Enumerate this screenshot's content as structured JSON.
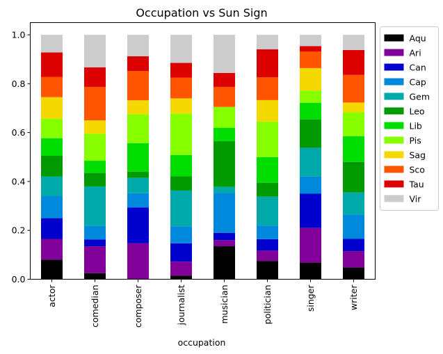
{
  "chart_data": {
    "type": "bar",
    "stacked": true,
    "title": "Occupation vs Sun Sign",
    "xlabel": "occupation",
    "ylabel": "",
    "ylim": [
      0,
      1.05
    ],
    "yticks": [
      "0.0",
      "0.2",
      "0.4",
      "0.6",
      "0.8",
      "1.0"
    ],
    "legend_position": "outside-right",
    "grid": false,
    "categories": [
      "actor",
      "comedian",
      "composer",
      "journalist",
      "musician",
      "politician",
      "singer",
      "writer"
    ],
    "series": [
      {
        "name": "Aqu",
        "color": "#000000",
        "values": [
          0.08,
          0.025,
          0.0,
          0.015,
          0.135,
          0.075,
          0.068,
          0.048
        ]
      },
      {
        "name": "Ari",
        "color": "#800099",
        "values": [
          0.085,
          0.11,
          0.147,
          0.057,
          0.025,
          0.042,
          0.142,
          0.067
        ]
      },
      {
        "name": "Can",
        "color": "#0000cc",
        "values": [
          0.085,
          0.028,
          0.147,
          0.075,
          0.03,
          0.047,
          0.14,
          0.05
        ]
      },
      {
        "name": "Cap",
        "color": "#0088dd",
        "values": [
          0.09,
          0.055,
          0.058,
          0.07,
          0.163,
          0.056,
          0.07,
          0.1
        ]
      },
      {
        "name": "Gem",
        "color": "#00aaaa",
        "values": [
          0.08,
          0.162,
          0.063,
          0.146,
          0.025,
          0.118,
          0.118,
          0.09
        ]
      },
      {
        "name": "Leo",
        "color": "#009900",
        "values": [
          0.085,
          0.055,
          0.025,
          0.058,
          0.187,
          0.057,
          0.116,
          0.125
        ]
      },
      {
        "name": "Lib",
        "color": "#00dd00",
        "values": [
          0.072,
          0.05,
          0.117,
          0.087,
          0.055,
          0.105,
          0.068,
          0.105
        ]
      },
      {
        "name": "Pis",
        "color": "#88ff00",
        "values": [
          0.08,
          0.11,
          0.118,
          0.17,
          0.085,
          0.145,
          0.05,
          0.098
        ]
      },
      {
        "name": "Sag",
        "color": "#f5d800",
        "values": [
          0.088,
          0.055,
          0.057,
          0.062,
          0.0,
          0.088,
          0.092,
          0.04
        ]
      },
      {
        "name": "Sco",
        "color": "#ff5500",
        "values": [
          0.083,
          0.137,
          0.12,
          0.085,
          0.082,
          0.093,
          0.068,
          0.113
        ]
      },
      {
        "name": "Tau",
        "color": "#dd0000",
        "values": [
          0.1,
          0.08,
          0.06,
          0.06,
          0.057,
          0.115,
          0.022,
          0.102
        ]
      },
      {
        "name": "Vir",
        "color": "#cccccc",
        "values": [
          0.072,
          0.133,
          0.088,
          0.115,
          0.156,
          0.059,
          0.046,
          0.062
        ]
      }
    ]
  }
}
